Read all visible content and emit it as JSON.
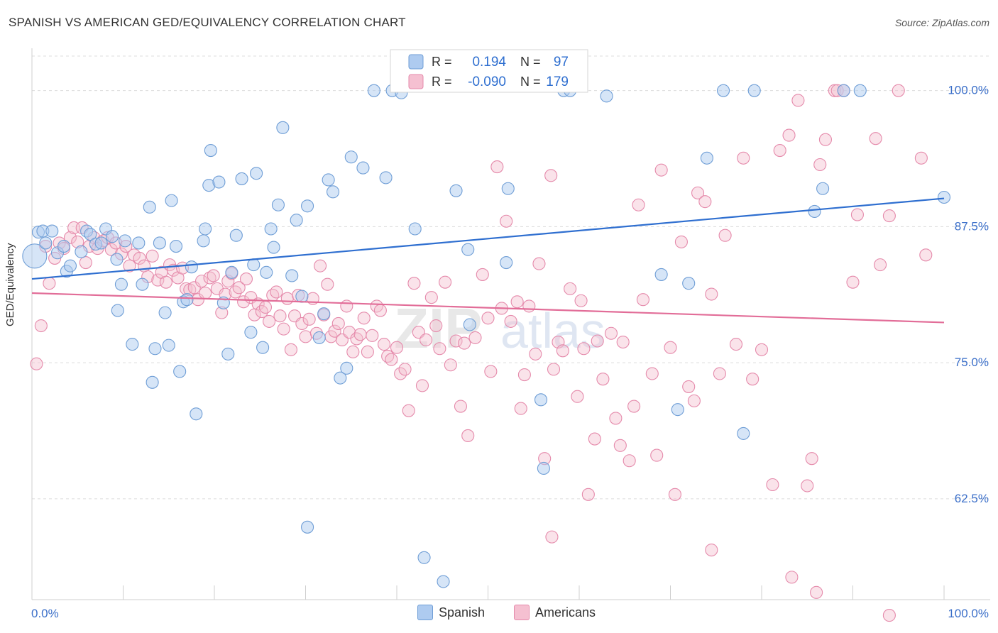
{
  "title": "SPANISH VS AMERICAN GED/EQUIVALENCY CORRELATION CHART",
  "source": "Source: ZipAtlas.com",
  "watermark": "ZIPatlas",
  "colors": {
    "spanish_fill": "#aecbf0",
    "spanish_stroke": "#6f9ed6",
    "spanish_line": "#2f6fd0",
    "american_fill": "#f5c0d1",
    "american_stroke": "#e58aab",
    "american_line": "#e26d98",
    "tick_label": "#3b6fc9"
  },
  "legend_box": {
    "rows": [
      {
        "r_label": "R =",
        "r_value": "0.194",
        "n_label": "N =",
        "n_value": "97"
      },
      {
        "r_label": "R =",
        "r_value": "-0.090",
        "n_label": "N =",
        "n_value": "179"
      }
    ]
  },
  "bottom_legend": {
    "spanish": "Spanish",
    "americans": "Americans"
  },
  "chart_data": {
    "type": "scatter",
    "title": "SPANISH VS AMERICAN GED/EQUIVALENCY CORRELATION CHART",
    "xlabel": "",
    "ylabel": "GED/Equivalency",
    "xlim": [
      0,
      100
    ],
    "ylim": [
      52,
      102
    ],
    "x_tick_labels": [
      "0.0%",
      "100.0%"
    ],
    "y_ticks": [
      62.5,
      75.0,
      87.5,
      100.0
    ],
    "y_tick_labels": [
      "62.5%",
      "75.0%",
      "87.5%",
      "100.0%"
    ],
    "grid": "horizontal dashed",
    "legend_placement": "top-center",
    "series": [
      {
        "name": "Spanish",
        "r": 0.194,
        "n": 97,
        "trend": {
          "x": [
            0,
            100
          ],
          "y": [
            82.7,
            90.1
          ]
        },
        "points": [
          [
            0.3,
            84.8
          ],
          [
            0.7,
            87.0
          ],
          [
            1.2,
            87.1
          ],
          [
            1.5,
            86.0
          ],
          [
            2.2,
            87.1
          ],
          [
            2.8,
            85.1
          ],
          [
            3.5,
            85.7
          ],
          [
            3.8,
            83.4
          ],
          [
            4.2,
            83.9
          ],
          [
            5.4,
            85.2
          ],
          [
            6.0,
            87.1
          ],
          [
            6.4,
            86.8
          ],
          [
            7.0,
            85.9
          ],
          [
            7.6,
            86.0
          ],
          [
            8.1,
            87.3
          ],
          [
            8.8,
            86.6
          ],
          [
            9.3,
            84.5
          ],
          [
            9.4,
            79.8
          ],
          [
            9.8,
            82.2
          ],
          [
            10.2,
            86.2
          ],
          [
            11.0,
            76.7
          ],
          [
            11.7,
            86.0
          ],
          [
            12.1,
            82.2
          ],
          [
            12.9,
            89.3
          ],
          [
            13.2,
            73.2
          ],
          [
            13.5,
            76.3
          ],
          [
            14.0,
            86.0
          ],
          [
            14.6,
            79.6
          ],
          [
            15.0,
            76.6
          ],
          [
            15.3,
            89.9
          ],
          [
            15.8,
            85.7
          ],
          [
            16.2,
            74.2
          ],
          [
            16.6,
            80.6
          ],
          [
            17.0,
            80.8
          ],
          [
            17.5,
            83.8
          ],
          [
            18.0,
            70.3
          ],
          [
            18.8,
            86.2
          ],
          [
            19.0,
            87.3
          ],
          [
            19.4,
            91.3
          ],
          [
            19.6,
            94.5
          ],
          [
            20.5,
            91.6
          ],
          [
            21.0,
            80.5
          ],
          [
            21.5,
            75.8
          ],
          [
            21.9,
            83.3
          ],
          [
            22.4,
            86.7
          ],
          [
            23.0,
            91.9
          ],
          [
            24.0,
            77.8
          ],
          [
            24.3,
            84.0
          ],
          [
            24.6,
            92.4
          ],
          [
            25.3,
            76.4
          ],
          [
            25.7,
            83.3
          ],
          [
            26.2,
            87.3
          ],
          [
            26.5,
            85.6
          ],
          [
            27.0,
            89.5
          ],
          [
            27.5,
            96.6
          ],
          [
            28.5,
            83.0
          ],
          [
            29.0,
            88.1
          ],
          [
            29.6,
            81.1
          ],
          [
            30.2,
            89.4
          ],
          [
            30.2,
            59.9
          ],
          [
            31.5,
            77.3
          ],
          [
            32.0,
            79.5
          ],
          [
            32.5,
            91.8
          ],
          [
            33.0,
            90.7
          ],
          [
            33.8,
            73.6
          ],
          [
            34.5,
            74.5
          ],
          [
            35.0,
            93.9
          ],
          [
            36.3,
            92.9
          ],
          [
            37.5,
            100.0
          ],
          [
            38.8,
            92.0
          ],
          [
            39.5,
            100.0
          ],
          [
            40.5,
            99.8
          ],
          [
            42.0,
            87.3
          ],
          [
            43.0,
            57.1
          ],
          [
            45.1,
            54.9
          ],
          [
            46.5,
            90.8
          ],
          [
            47.8,
            85.4
          ],
          [
            48.0,
            78.5
          ],
          [
            52.0,
            84.2
          ],
          [
            52.2,
            91.0
          ],
          [
            55.8,
            71.6
          ],
          [
            56.1,
            65.3
          ],
          [
            58.3,
            100.0
          ],
          [
            59.0,
            100.0
          ],
          [
            63.0,
            99.5
          ],
          [
            69.0,
            83.1
          ],
          [
            70.8,
            70.7
          ],
          [
            72.0,
            82.3
          ],
          [
            74.0,
            93.8
          ],
          [
            75.8,
            100.0
          ],
          [
            78.0,
            68.5
          ],
          [
            79.2,
            100.0
          ],
          [
            85.8,
            88.9
          ],
          [
            86.7,
            91.0
          ],
          [
            89.0,
            100.0
          ],
          [
            90.8,
            100.0
          ],
          [
            100.0,
            90.2
          ]
        ]
      },
      {
        "name": "Americans",
        "r": -0.09,
        "n": 179,
        "trend": {
          "x": [
            0,
            100
          ],
          "y": [
            81.4,
            78.7
          ]
        },
        "points": [
          [
            0.5,
            74.9
          ],
          [
            1.0,
            78.4
          ],
          [
            1.5,
            85.7
          ],
          [
            1.9,
            82.3
          ],
          [
            2.5,
            84.6
          ],
          [
            3.0,
            86.0
          ],
          [
            3.5,
            85.5
          ],
          [
            4.2,
            86.5
          ],
          [
            4.6,
            87.4
          ],
          [
            5.0,
            86.1
          ],
          [
            5.5,
            87.4
          ],
          [
            5.9,
            84.2
          ],
          [
            6.3,
            85.7
          ],
          [
            6.8,
            86.5
          ],
          [
            7.2,
            85.5
          ],
          [
            7.8,
            86.2
          ],
          [
            8.3,
            86.5
          ],
          [
            8.7,
            85.4
          ],
          [
            9.2,
            86.0
          ],
          [
            9.8,
            85.0
          ],
          [
            10.3,
            85.7
          ],
          [
            10.7,
            83.9
          ],
          [
            11.2,
            84.9
          ],
          [
            11.8,
            84.6
          ],
          [
            12.3,
            83.9
          ],
          [
            12.7,
            82.9
          ],
          [
            13.2,
            84.8
          ],
          [
            13.8,
            82.6
          ],
          [
            14.2,
            83.3
          ],
          [
            14.7,
            82.4
          ],
          [
            15.1,
            84.0
          ],
          [
            15.5,
            83.5
          ],
          [
            16.0,
            82.8
          ],
          [
            16.5,
            83.7
          ],
          [
            16.9,
            81.8
          ],
          [
            17.3,
            81.7
          ],
          [
            17.8,
            81.9
          ],
          [
            18.2,
            80.8
          ],
          [
            18.6,
            82.5
          ],
          [
            19.0,
            81.4
          ],
          [
            19.5,
            82.8
          ],
          [
            19.9,
            83.0
          ],
          [
            20.3,
            81.8
          ],
          [
            20.8,
            79.6
          ],
          [
            21.2,
            81.3
          ],
          [
            21.5,
            82.5
          ],
          [
            21.9,
            83.2
          ],
          [
            22.3,
            81.5
          ],
          [
            22.7,
            81.9
          ],
          [
            23.2,
            80.6
          ],
          [
            23.5,
            82.7
          ],
          [
            24.0,
            81.0
          ],
          [
            24.4,
            79.4
          ],
          [
            24.8,
            80.4
          ],
          [
            25.2,
            79.7
          ],
          [
            25.6,
            80.1
          ],
          [
            26.0,
            78.8
          ],
          [
            26.4,
            81.2
          ],
          [
            26.8,
            81.5
          ],
          [
            27.2,
            79.3
          ],
          [
            27.6,
            78.1
          ],
          [
            28.0,
            80.9
          ],
          [
            28.4,
            76.2
          ],
          [
            28.8,
            79.3
          ],
          [
            29.2,
            81.2
          ],
          [
            29.6,
            78.6
          ],
          [
            30.0,
            77.4
          ],
          [
            30.4,
            79.0
          ],
          [
            30.8,
            80.9
          ],
          [
            31.2,
            77.7
          ],
          [
            31.6,
            83.9
          ],
          [
            32.0,
            79.4
          ],
          [
            32.4,
            82.2
          ],
          [
            32.8,
            77.4
          ],
          [
            33.2,
            77.9
          ],
          [
            33.6,
            78.6
          ],
          [
            34.0,
            77.1
          ],
          [
            34.5,
            80.2
          ],
          [
            34.8,
            77.8
          ],
          [
            35.2,
            76.0
          ],
          [
            35.6,
            77.2
          ],
          [
            36.0,
            77.6
          ],
          [
            36.4,
            79.1
          ],
          [
            36.8,
            76.0
          ],
          [
            37.3,
            77.5
          ],
          [
            37.8,
            80.2
          ],
          [
            38.2,
            79.8
          ],
          [
            38.6,
            76.7
          ],
          [
            39.0,
            75.6
          ],
          [
            39.4,
            75.3
          ],
          [
            40.0,
            76.4
          ],
          [
            40.4,
            74.0
          ],
          [
            40.9,
            74.4
          ],
          [
            41.3,
            70.6
          ],
          [
            41.9,
            82.3
          ],
          [
            42.4,
            77.8
          ],
          [
            42.8,
            72.9
          ],
          [
            43.2,
            77.1
          ],
          [
            43.8,
            81.0
          ],
          [
            44.3,
            78.4
          ],
          [
            44.7,
            76.3
          ],
          [
            45.3,
            82.4
          ],
          [
            45.9,
            74.8
          ],
          [
            46.5,
            77.0
          ],
          [
            47.0,
            71.0
          ],
          [
            47.4,
            76.8
          ],
          [
            47.8,
            68.3
          ],
          [
            48.6,
            77.3
          ],
          [
            49.4,
            83.1
          ],
          [
            50.0,
            79.1
          ],
          [
            50.3,
            74.2
          ],
          [
            51.0,
            93.0
          ],
          [
            51.5,
            80.0
          ],
          [
            52.0,
            88.0
          ],
          [
            52.5,
            78.8
          ],
          [
            53.2,
            80.6
          ],
          [
            53.6,
            70.8
          ],
          [
            54.0,
            73.9
          ],
          [
            54.5,
            80.2
          ],
          [
            55.2,
            75.8
          ],
          [
            55.6,
            84.1
          ],
          [
            56.2,
            66.2
          ],
          [
            56.9,
            92.2
          ],
          [
            57.2,
            74.4
          ],
          [
            57.7,
            76.9
          ],
          [
            58.2,
            76.1
          ],
          [
            59.0,
            81.8
          ],
          [
            59.8,
            71.9
          ],
          [
            60.2,
            80.7
          ],
          [
            60.5,
            76.3
          ],
          [
            61.0,
            62.9
          ],
          [
            61.7,
            68.0
          ],
          [
            62.0,
            77.0
          ],
          [
            62.6,
            73.5
          ],
          [
            63.5,
            77.7
          ],
          [
            64.0,
            69.9
          ],
          [
            64.5,
            67.4
          ],
          [
            64.8,
            76.9
          ],
          [
            65.5,
            66.0
          ],
          [
            66.0,
            71.0
          ],
          [
            66.5,
            89.5
          ],
          [
            67.0,
            80.8
          ],
          [
            68.0,
            74.0
          ],
          [
            68.5,
            66.5
          ],
          [
            69.0,
            92.7
          ],
          [
            70.0,
            76.4
          ],
          [
            70.5,
            62.9
          ],
          [
            71.2,
            86.1
          ],
          [
            72.0,
            72.8
          ],
          [
            72.6,
            71.5
          ],
          [
            73.0,
            90.6
          ],
          [
            73.8,
            89.8
          ],
          [
            74.5,
            81.3
          ],
          [
            75.4,
            74.0
          ],
          [
            76.0,
            86.7
          ],
          [
            77.2,
            76.7
          ],
          [
            78.0,
            93.8
          ],
          [
            79.0,
            73.5
          ],
          [
            80.0,
            76.2
          ],
          [
            81.2,
            63.8
          ],
          [
            82.0,
            94.5
          ],
          [
            83.0,
            95.9
          ],
          [
            84.0,
            99.1
          ],
          [
            85.0,
            63.7
          ],
          [
            85.5,
            66.2
          ],
          [
            86.4,
            93.2
          ],
          [
            87.0,
            95.5
          ],
          [
            88.0,
            100.0
          ],
          [
            88.3,
            100.0
          ],
          [
            89.0,
            100.0
          ],
          [
            90.0,
            82.4
          ],
          [
            90.5,
            88.6
          ],
          [
            92.5,
            95.6
          ],
          [
            93.0,
            84.0
          ],
          [
            94.0,
            88.5
          ],
          [
            95.0,
            100.0
          ],
          [
            97.5,
            93.8
          ],
          [
            98.0,
            84.9
          ],
          [
            57.0,
            59.0
          ],
          [
            74.5,
            57.8
          ],
          [
            83.3,
            55.3
          ],
          [
            86.0,
            53.9
          ],
          [
            94.0,
            51.8
          ]
        ]
      }
    ]
  }
}
